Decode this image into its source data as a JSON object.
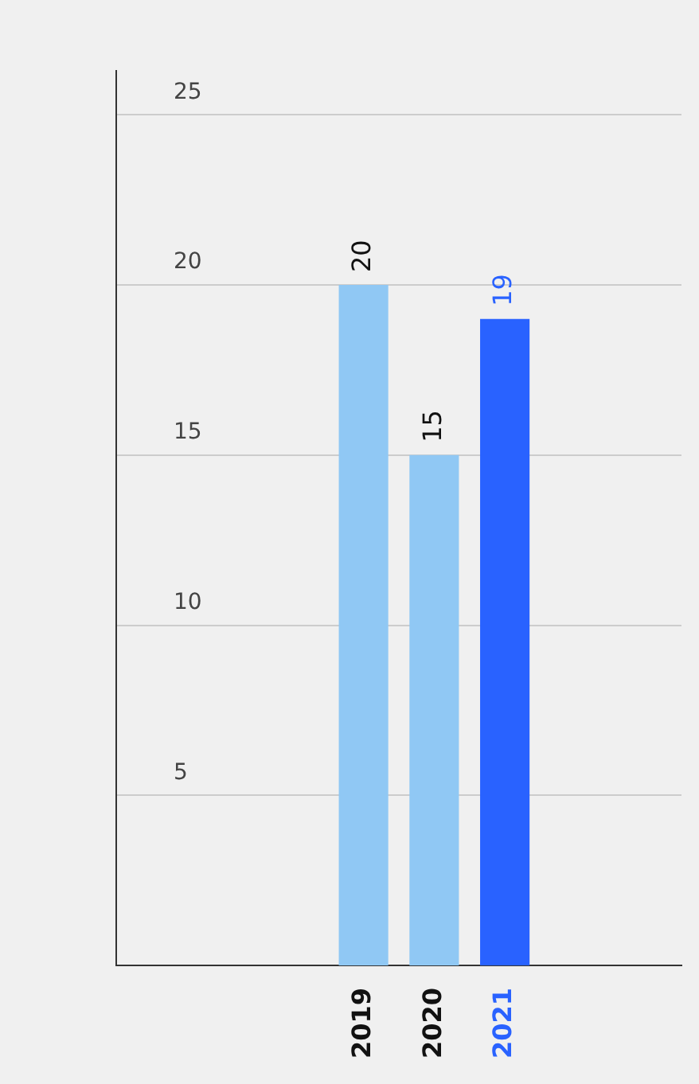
{
  "chart_data": {
    "type": "bar",
    "categories": [
      null,
      null,
      null,
      "2019",
      "2020",
      "2021",
      null,
      null
    ],
    "values": [
      null,
      null,
      null,
      20,
      15,
      19,
      null,
      null
    ],
    "colors": [
      "#90c8f4",
      "#90c8f4",
      "#90c8f4",
      "#90c8f4",
      "#90c8f4",
      "#2962ff",
      "#90c8f4",
      "#90c8f4"
    ],
    "ylim": [
      0,
      26.3
    ],
    "yticks": [
      5,
      10,
      15,
      20,
      25
    ],
    "grid": "y",
    "legend": false,
    "data_labels": true
  }
}
